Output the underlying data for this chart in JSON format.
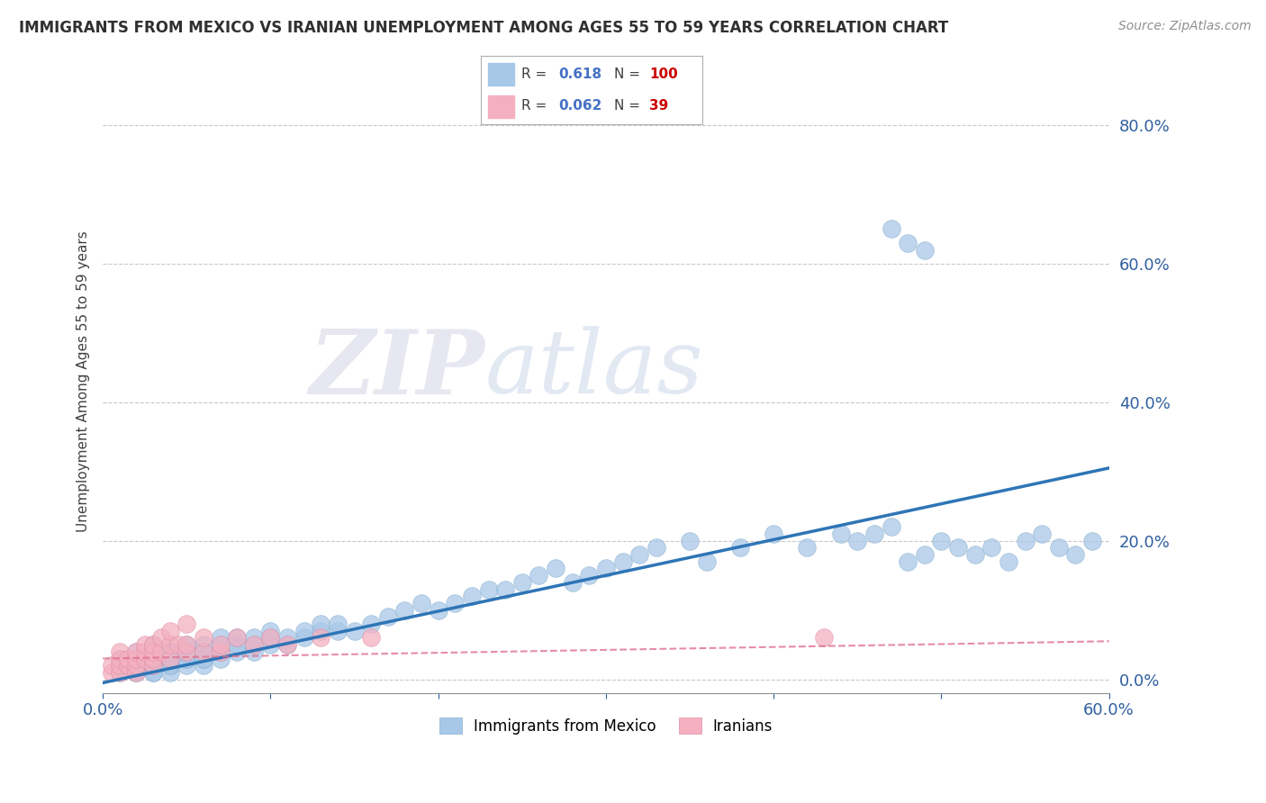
{
  "title": "IMMIGRANTS FROM MEXICO VS IRANIAN UNEMPLOYMENT AMONG AGES 55 TO 59 YEARS CORRELATION CHART",
  "source": "Source: ZipAtlas.com",
  "ylabel": "Unemployment Among Ages 55 to 59 years",
  "blue_color": "#a8c8e8",
  "pink_color": "#f4b0c0",
  "blue_line_color": "#2e75b6",
  "pink_line_color": "#e07090",
  "background_color": "#ffffff",
  "grid_color": "#c8c8c8",
  "ytick_labels": [
    "0.0%",
    "20.0%",
    "40.0%",
    "60.0%",
    "80.0%"
  ],
  "ytick_values": [
    0.0,
    0.2,
    0.4,
    0.6,
    0.8
  ],
  "xlim": [
    0.0,
    0.6
  ],
  "ylim": [
    -0.02,
    0.88
  ],
  "blue_scatter_x": [
    0.01,
    0.01,
    0.01,
    0.02,
    0.02,
    0.02,
    0.02,
    0.02,
    0.02,
    0.02,
    0.03,
    0.03,
    0.03,
    0.03,
    0.03,
    0.03,
    0.03,
    0.03,
    0.03,
    0.04,
    0.04,
    0.04,
    0.04,
    0.04,
    0.04,
    0.04,
    0.05,
    0.05,
    0.05,
    0.05,
    0.05,
    0.05,
    0.06,
    0.06,
    0.06,
    0.06,
    0.06,
    0.07,
    0.07,
    0.07,
    0.07,
    0.08,
    0.08,
    0.08,
    0.09,
    0.09,
    0.09,
    0.1,
    0.1,
    0.1,
    0.11,
    0.11,
    0.12,
    0.12,
    0.13,
    0.13,
    0.14,
    0.14,
    0.15,
    0.16,
    0.17,
    0.18,
    0.19,
    0.2,
    0.21,
    0.22,
    0.23,
    0.24,
    0.25,
    0.26,
    0.27,
    0.28,
    0.29,
    0.3,
    0.31,
    0.32,
    0.33,
    0.35,
    0.36,
    0.38,
    0.4,
    0.42,
    0.44,
    0.45,
    0.46,
    0.47,
    0.48,
    0.49,
    0.5,
    0.51,
    0.52,
    0.53,
    0.54,
    0.55,
    0.56,
    0.57,
    0.58,
    0.59,
    0.47,
    0.48,
    0.49
  ],
  "blue_scatter_y": [
    0.01,
    0.02,
    0.03,
    0.01,
    0.02,
    0.03,
    0.01,
    0.02,
    0.03,
    0.04,
    0.01,
    0.02,
    0.02,
    0.03,
    0.03,
    0.04,
    0.05,
    0.01,
    0.02,
    0.01,
    0.02,
    0.03,
    0.04,
    0.02,
    0.03,
    0.04,
    0.02,
    0.03,
    0.04,
    0.03,
    0.04,
    0.05,
    0.02,
    0.03,
    0.04,
    0.05,
    0.03,
    0.03,
    0.04,
    0.05,
    0.06,
    0.04,
    0.05,
    0.06,
    0.04,
    0.05,
    0.06,
    0.05,
    0.06,
    0.07,
    0.05,
    0.06,
    0.06,
    0.07,
    0.07,
    0.08,
    0.07,
    0.08,
    0.07,
    0.08,
    0.09,
    0.1,
    0.11,
    0.1,
    0.11,
    0.12,
    0.13,
    0.13,
    0.14,
    0.15,
    0.16,
    0.14,
    0.15,
    0.16,
    0.17,
    0.18,
    0.19,
    0.2,
    0.17,
    0.19,
    0.21,
    0.19,
    0.21,
    0.2,
    0.21,
    0.22,
    0.17,
    0.18,
    0.2,
    0.19,
    0.18,
    0.19,
    0.17,
    0.2,
    0.21,
    0.19,
    0.18,
    0.2,
    0.65,
    0.63,
    0.62
  ],
  "pink_scatter_x": [
    0.005,
    0.005,
    0.01,
    0.01,
    0.01,
    0.01,
    0.015,
    0.015,
    0.02,
    0.02,
    0.02,
    0.02,
    0.025,
    0.025,
    0.025,
    0.03,
    0.03,
    0.03,
    0.03,
    0.035,
    0.035,
    0.04,
    0.04,
    0.04,
    0.045,
    0.05,
    0.05,
    0.05,
    0.06,
    0.06,
    0.07,
    0.07,
    0.08,
    0.09,
    0.1,
    0.11,
    0.13,
    0.16,
    0.43
  ],
  "pink_scatter_y": [
    0.01,
    0.02,
    0.01,
    0.02,
    0.03,
    0.04,
    0.02,
    0.03,
    0.01,
    0.02,
    0.03,
    0.04,
    0.03,
    0.04,
    0.05,
    0.02,
    0.03,
    0.04,
    0.05,
    0.04,
    0.06,
    0.03,
    0.05,
    0.07,
    0.05,
    0.04,
    0.05,
    0.08,
    0.04,
    0.06,
    0.04,
    0.05,
    0.06,
    0.05,
    0.06,
    0.05,
    0.06,
    0.06,
    0.06
  ],
  "blue_line_x0": 0.0,
  "blue_line_y0": -0.005,
  "blue_line_x1": 0.6,
  "blue_line_y1": 0.305,
  "pink_line_x0": 0.0,
  "pink_line_y0": 0.03,
  "pink_line_x1": 0.6,
  "pink_line_y1": 0.055
}
